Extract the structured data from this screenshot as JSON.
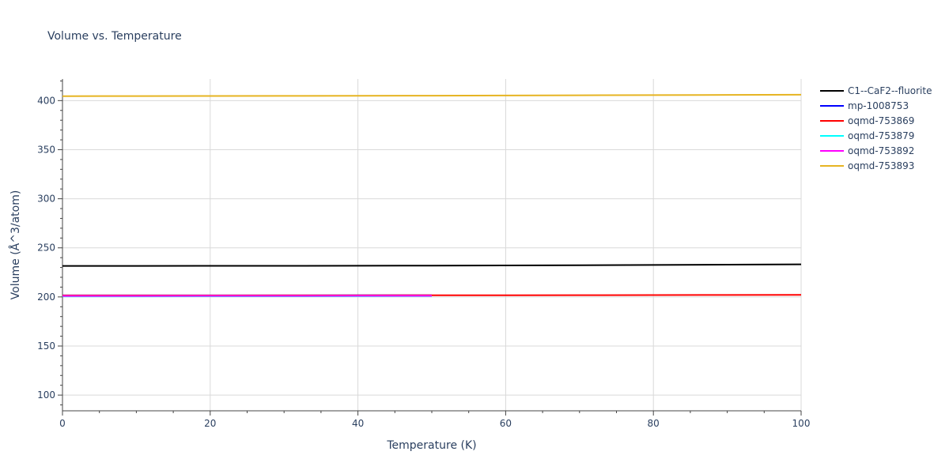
{
  "chart_data": {
    "type": "line",
    "title": "Volume vs. Temperature",
    "xlabel": "Temperature (K)",
    "ylabel": "Volume (Å^3/atom)",
    "xlim": [
      0,
      100
    ],
    "ylim": [
      84,
      422
    ],
    "x_ticks": [
      0,
      20,
      40,
      60,
      80,
      100
    ],
    "y_ticks": [
      100,
      150,
      200,
      250,
      300,
      350,
      400
    ],
    "grid": true,
    "legend_position": "top-right, outside plot",
    "series": [
      {
        "name": "C1--CaF2--fluorite",
        "color": "#000000",
        "x": [
          0,
          10,
          20,
          30,
          40,
          50,
          60,
          70,
          80,
          90,
          100
        ],
        "y": [
          231.6,
          231.6,
          231.7,
          231.7,
          231.8,
          231.9,
          232.1,
          232.3,
          232.6,
          232.9,
          233.2
        ]
      },
      {
        "name": "mp-1008753",
        "color": "#0000ff",
        "x": [
          0,
          10,
          20,
          30,
          40,
          50
        ],
        "y": [
          201.6,
          201.6,
          201.6,
          201.6,
          201.7,
          201.7
        ]
      },
      {
        "name": "oqmd-753869",
        "color": "#ff0000",
        "x": [
          0,
          10,
          20,
          30,
          40,
          50,
          60,
          70,
          80,
          90,
          100
        ],
        "y": [
          201.5,
          201.5,
          201.5,
          201.6,
          201.6,
          201.7,
          201.7,
          201.8,
          201.9,
          202.0,
          202.1
        ]
      },
      {
        "name": "oqmd-753879",
        "color": "#00ffff",
        "x": [
          0,
          10,
          20,
          30,
          40,
          50
        ],
        "y": [
          200.6,
          200.6,
          200.7,
          200.7,
          200.8,
          200.9
        ]
      },
      {
        "name": "oqmd-753892",
        "color": "#ff00ff",
        "x": [
          0,
          10,
          20,
          30,
          40,
          50
        ],
        "y": [
          201.0,
          201.0,
          201.1,
          201.1,
          201.2,
          201.2
        ]
      },
      {
        "name": "oqmd-753893",
        "color": "#e6b422",
        "x": [
          0,
          10,
          20,
          30,
          40,
          50,
          60,
          70,
          80,
          90,
          100
        ],
        "y": [
          404.5,
          404.6,
          404.7,
          404.8,
          404.9,
          405.0,
          405.2,
          405.4,
          405.6,
          405.8,
          406.0
        ]
      }
    ]
  }
}
